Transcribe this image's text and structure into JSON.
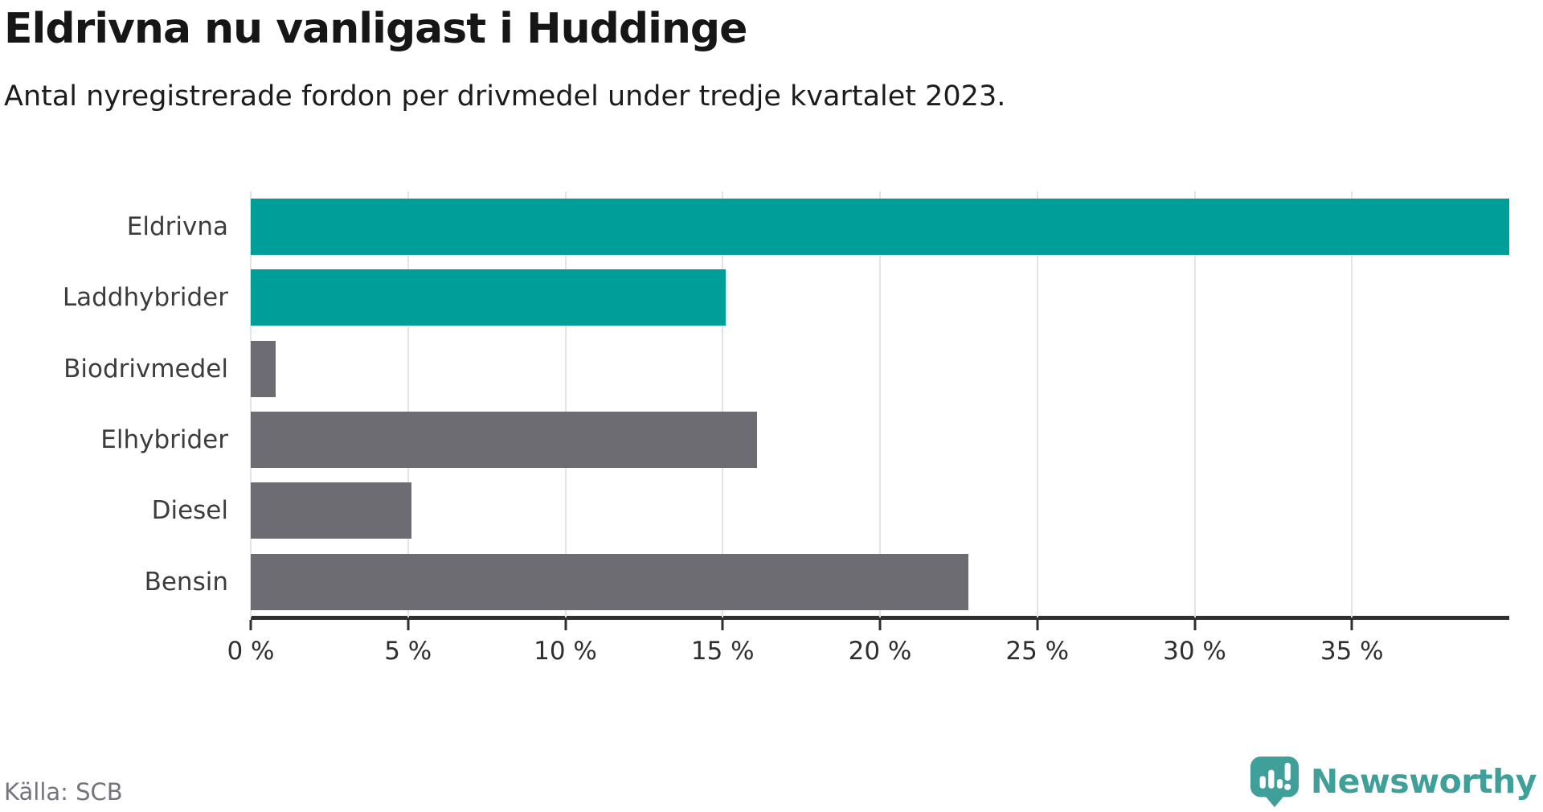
{
  "title": "Eldrivna nu vanligast i Huddinge",
  "subtitle": "Antal nyregistrerade fordon per drivmedel under tredje kvartalet 2023.",
  "source": "Källa: SCB",
  "branding": {
    "name": "Newsworthy",
    "icon": "newsworthy-logo-icon",
    "color": "#3f9f99"
  },
  "colors": {
    "highlight_bar": "#009e99",
    "default_bar": "#6c6c72",
    "axis": "#2f2f2f",
    "grid": "#e4e4e4",
    "source_text": "#74747c"
  },
  "chart_data": {
    "type": "bar",
    "orientation": "horizontal",
    "title": "Eldrivna nu vanligast i Huddinge",
    "subtitle": "Antal nyregistrerade fordon per drivmedel under tredje kvartalet 2023.",
    "xlabel": "",
    "ylabel": "",
    "categories": [
      "Eldrivna",
      "Laddhybrider",
      "Biodrivmedel",
      "Elhybrider",
      "Diesel",
      "Bensin"
    ],
    "values": [
      40.0,
      15.1,
      0.8,
      16.1,
      5.1,
      22.8
    ],
    "unit": "%",
    "bar_colors": [
      "#009e99",
      "#009e99",
      "#6c6c72",
      "#6c6c72",
      "#6c6c72",
      "#6c6c72"
    ],
    "xlim": [
      0,
      40
    ],
    "x_ticks": [
      0,
      5,
      10,
      15,
      20,
      25,
      30,
      35
    ],
    "x_tick_labels": [
      "0 %",
      "5 %",
      "10 %",
      "15 %",
      "20 %",
      "25 %",
      "30 %",
      "35 %"
    ],
    "grid": true,
    "legend": false
  }
}
